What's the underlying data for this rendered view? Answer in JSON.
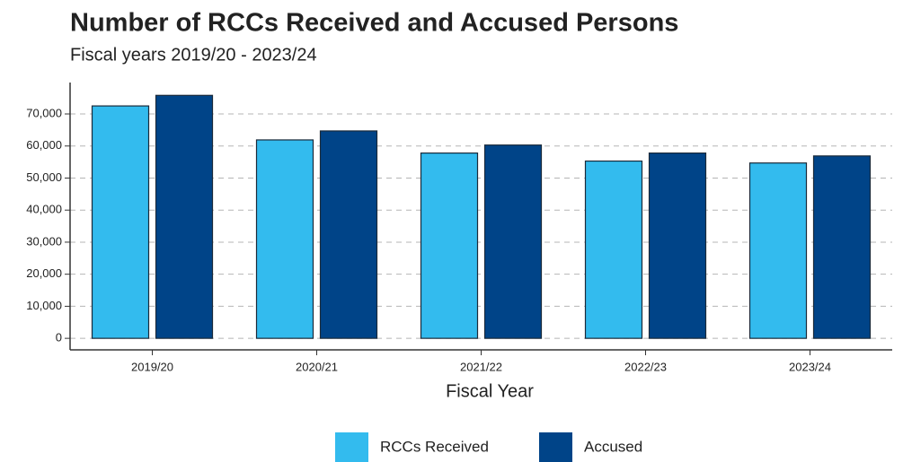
{
  "chart_data": {
    "type": "bar",
    "title": "Number of RCCs Received and Accused Persons",
    "subtitle": "Fiscal years 2019/20 - 2023/24",
    "x_label": "Fiscal Year",
    "categories": [
      "2019/20",
      "2020/21",
      "2021/22",
      "2022/23",
      "2023/24"
    ],
    "series": [
      {
        "name": "RCCs Received",
        "color": "#33bbee",
        "values": [
          72500,
          61900,
          57800,
          55300,
          54700
        ]
      },
      {
        "name": "Accused",
        "color": "#004488",
        "values": [
          75800,
          64700,
          60300,
          57800,
          56900
        ]
      }
    ],
    "ylim": [
      -3600,
      79800
    ],
    "yticks": [
      0,
      {
        "value": 10000,
        "label": "10,000"
      },
      {
        "value": 20000,
        "label": "20,000"
      },
      {
        "value": 30000,
        "label": "30,000"
      },
      {
        "value": 40000,
        "label": "40,000"
      },
      {
        "value": 50000,
        "label": "50,000"
      },
      {
        "value": 60000,
        "label": "60,000"
      },
      {
        "value": 70000,
        "label": "70,000"
      }
    ],
    "grid": true,
    "legend": "bottom"
  }
}
